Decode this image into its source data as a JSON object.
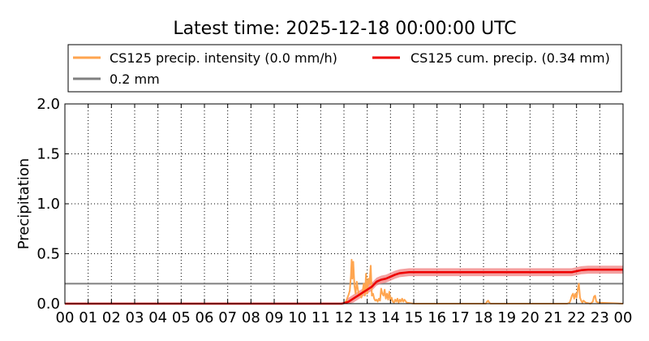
{
  "chart_data": {
    "type": "line",
    "title": "Latest time: 2025-12-18 00:00:00 UTC",
    "xlabel": "",
    "ylabel": "Precipitation",
    "xlim": [
      0,
      24
    ],
    "ylim": [
      0,
      2.0
    ],
    "yticks": [
      {
        "value": 0.0,
        "label": "0.0"
      },
      {
        "value": 0.5,
        "label": "0.5"
      },
      {
        "value": 1.0,
        "label": "1.0"
      },
      {
        "value": 1.5,
        "label": "1.5"
      },
      {
        "value": 2.0,
        "label": "2.0"
      }
    ],
    "xticks": [
      {
        "value": 0,
        "label": "00"
      },
      {
        "value": 1,
        "label": "01"
      },
      {
        "value": 2,
        "label": "02"
      },
      {
        "value": 3,
        "label": "03"
      },
      {
        "value": 4,
        "label": "04"
      },
      {
        "value": 5,
        "label": "05"
      },
      {
        "value": 6,
        "label": "06"
      },
      {
        "value": 7,
        "label": "07"
      },
      {
        "value": 8,
        "label": "08"
      },
      {
        "value": 9,
        "label": "09"
      },
      {
        "value": 10,
        "label": "10"
      },
      {
        "value": 11,
        "label": "11"
      },
      {
        "value": 12,
        "label": "12"
      },
      {
        "value": 13,
        "label": "13"
      },
      {
        "value": 14,
        "label": "14"
      },
      {
        "value": 15,
        "label": "15"
      },
      {
        "value": 16,
        "label": "16"
      },
      {
        "value": 17,
        "label": "17"
      },
      {
        "value": 18,
        "label": "18"
      },
      {
        "value": 19,
        "label": "19"
      },
      {
        "value": 20,
        "label": "20"
      },
      {
        "value": 21,
        "label": "21"
      },
      {
        "value": 22,
        "label": "22"
      },
      {
        "value": 23,
        "label": "23"
      },
      {
        "value": 24,
        "label": "00"
      }
    ],
    "grid": true,
    "legend_position": "top",
    "series": [
      {
        "name": "CS125 precip. intensity (0.0 mm/h)",
        "color": "#ffa54f",
        "x": [
          0,
          11.95,
          12.05,
          12.1,
          12.15,
          12.2,
          12.25,
          12.3,
          12.33,
          12.36,
          12.4,
          12.45,
          12.5,
          12.55,
          12.6,
          12.65,
          12.7,
          12.75,
          12.8,
          12.85,
          12.9,
          12.95,
          13.0,
          13.05,
          13.1,
          13.15,
          13.2,
          13.25,
          13.3,
          13.35,
          13.4,
          13.45,
          13.5,
          13.55,
          13.6,
          13.65,
          13.7,
          13.75,
          13.8,
          13.85,
          13.9,
          13.95,
          14.0,
          14.05,
          14.1,
          14.15,
          14.2,
          14.25,
          14.3,
          14.35,
          14.4,
          14.45,
          14.5,
          14.55,
          14.6,
          14.7,
          15.0,
          18.1,
          18.15,
          18.2,
          18.25,
          18.3,
          21.6,
          21.7,
          21.75,
          21.8,
          21.85,
          21.9,
          21.95,
          22.0,
          22.05,
          22.1,
          22.15,
          22.2,
          22.25,
          22.3,
          22.4,
          22.6,
          22.7,
          22.75,
          22.8,
          22.85,
          22.95,
          24
        ],
        "values": [
          0,
          0,
          0.01,
          0.03,
          0.06,
          0.09,
          0.13,
          0.28,
          0.44,
          0.25,
          0.42,
          0.18,
          0.1,
          0.22,
          0.14,
          0.08,
          0.1,
          0.06,
          0.12,
          0.2,
          0.08,
          0.3,
          0.1,
          0.25,
          0.2,
          0.38,
          0.08,
          0.1,
          0.05,
          0.03,
          0.04,
          0.02,
          0.05,
          0.03,
          0.15,
          0.1,
          0.08,
          0.14,
          0.05,
          0.1,
          0.04,
          0.12,
          0.03,
          0.06,
          0.02,
          0.01,
          0.04,
          0.02,
          0.05,
          0.01,
          0.04,
          0.02,
          0.05,
          0.02,
          0.04,
          0.01,
          0,
          0,
          0.02,
          0.03,
          0.01,
          0,
          0,
          0.01,
          0.04,
          0.08,
          0.1,
          0.05,
          0.1,
          0.06,
          0.14,
          0.2,
          0.06,
          0.03,
          0.01,
          0.03,
          0.01,
          0,
          0.02,
          0.07,
          0.08,
          0.02,
          0.01,
          0
        ]
      },
      {
        "name": "CS125 cum. precip. (0.34 mm)",
        "color": "#ee0000",
        "band_color": "#f08080",
        "x": [
          0,
          11.9,
          12.0,
          12.2,
          12.4,
          12.6,
          12.8,
          13.0,
          13.2,
          13.4,
          13.6,
          13.8,
          14.0,
          14.2,
          14.4,
          14.6,
          14.8,
          15.0,
          21.5,
          21.8,
          22.0,
          22.2,
          22.5,
          23.0,
          24
        ],
        "values": [
          0,
          0,
          0.005,
          0.02,
          0.05,
          0.08,
          0.11,
          0.14,
          0.17,
          0.22,
          0.24,
          0.25,
          0.27,
          0.29,
          0.305,
          0.31,
          0.315,
          0.315,
          0.315,
          0.315,
          0.325,
          0.335,
          0.34,
          0.34,
          0.34
        ],
        "band": 0.04
      },
      {
        "name": "0.2 mm",
        "color": "#808080",
        "x": [
          0,
          24
        ],
        "values": [
          0.2,
          0.2
        ]
      }
    ]
  }
}
